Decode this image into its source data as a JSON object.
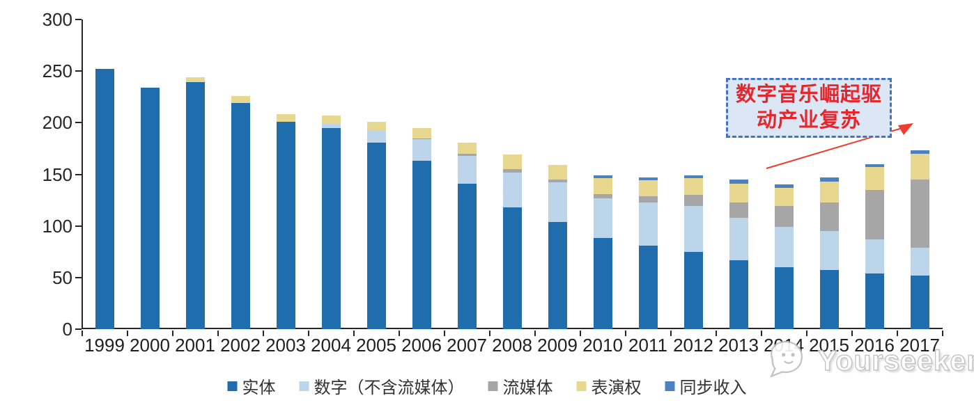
{
  "chart_data": {
    "type": "bar",
    "stacked": true,
    "categories": [
      "1999",
      "2000",
      "2001",
      "2002",
      "2003",
      "2004",
      "2005",
      "2006",
      "2007",
      "2008",
      "2009",
      "2010",
      "2011",
      "2012",
      "2013",
      "2014",
      "2015",
      "2016",
      "2017"
    ],
    "series": [
      {
        "name": "实体",
        "color": "#1f6dad",
        "values": [
          252,
          234,
          239,
          219,
          201,
          195,
          181,
          163,
          141,
          118,
          104,
          88,
          81,
          75,
          67,
          60,
          57,
          54,
          52
        ]
      },
      {
        "name": "数字（不含流媒体）",
        "color": "#bcd5eb",
        "values": [
          0,
          0,
          0,
          0,
          0,
          4,
          12,
          21,
          27,
          34,
          38,
          39,
          42,
          44,
          41,
          39,
          38,
          33,
          27
        ]
      },
      {
        "name": "流媒体",
        "color": "#a6a6a6",
        "values": [
          0,
          0,
          0,
          0,
          0,
          0,
          0,
          1,
          2,
          3,
          3,
          4,
          6,
          11,
          15,
          20,
          28,
          48,
          66
        ]
      },
      {
        "name": "表演权",
        "color": "#e8d88f",
        "values": [
          0,
          0,
          5,
          7,
          7,
          8,
          8,
          10,
          11,
          14,
          14,
          15,
          15,
          16,
          18,
          18,
          20,
          22,
          25
        ]
      },
      {
        "name": "同步收入",
        "color": "#4a81be",
        "values": [
          0,
          0,
          0,
          0,
          0,
          0,
          0,
          0,
          0,
          0,
          0,
          3,
          3,
          3,
          4,
          3,
          4,
          3,
          3
        ]
      }
    ],
    "ylim": [
      0,
      300
    ],
    "y_ticks": [
      0,
      50,
      100,
      150,
      200,
      250,
      300
    ],
    "grid": false,
    "legend_position": "bottom",
    "axis_color": "#262626"
  },
  "annotation": {
    "line1": "数字音乐崛起驱",
    "line2": "动产业复苏",
    "border_color": "#4472c4",
    "fill_color": "#dbe7f5",
    "text_color": "#e8252b",
    "arrow_color": "#f03b2e"
  },
  "watermark": {
    "text": "Yourseeker"
  }
}
